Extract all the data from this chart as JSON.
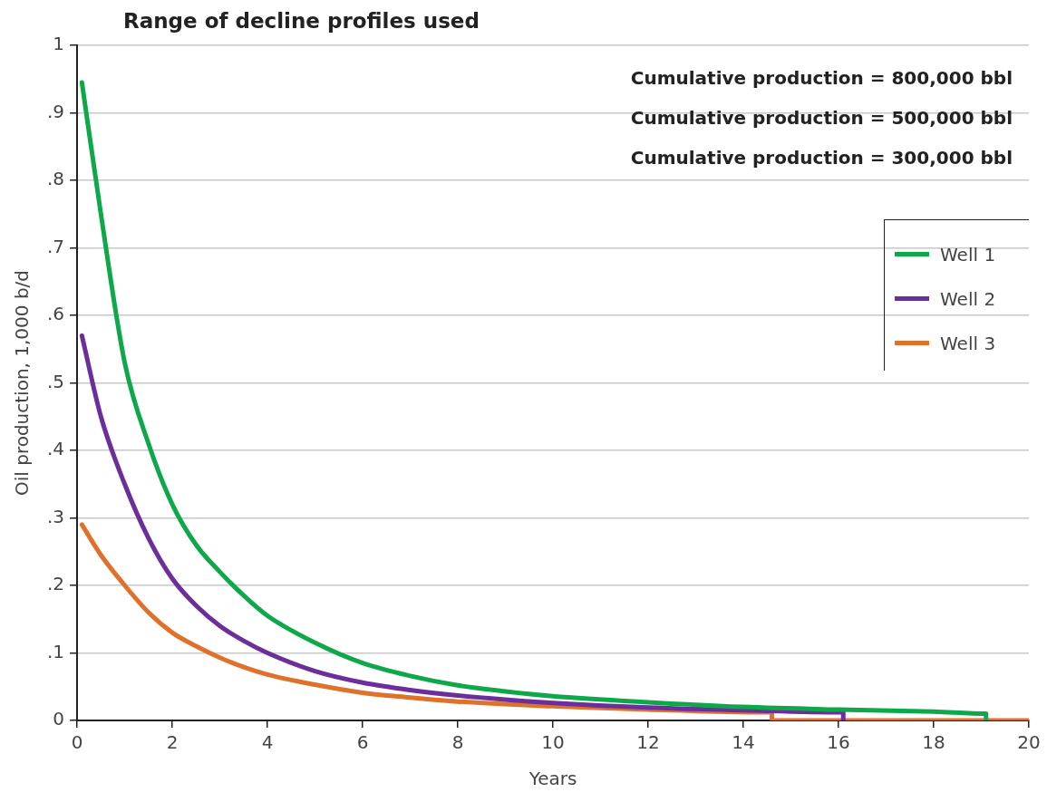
{
  "chart_data": {
    "type": "line",
    "title": "Range of decline profiles used",
    "xlabel": "Years",
    "ylabel": "Oil production, 1,000 b/d",
    "annotations": [
      "Cumulative production = 800,000 bbl",
      "Cumulative production = 500,000 bbl",
      "Cumulative production = 300,000 bbl"
    ],
    "series": [
      {
        "name": "Well 1",
        "color": "#0ea84a",
        "x": [
          0.1,
          0.5,
          1,
          1.5,
          2,
          2.5,
          3,
          3.5,
          4,
          5,
          6,
          7,
          8,
          9,
          10,
          12,
          14,
          16,
          18,
          19.1,
          19.1
        ],
        "values": [
          0.945,
          0.75,
          0.53,
          0.41,
          0.32,
          0.26,
          0.22,
          0.185,
          0.155,
          0.115,
          0.085,
          0.066,
          0.052,
          0.043,
          0.036,
          0.027,
          0.02,
          0.016,
          0.013,
          0.01,
          0
        ]
      },
      {
        "name": "Well 2",
        "color": "#6b2e9a",
        "x": [
          0.1,
          0.5,
          1,
          1.5,
          2,
          2.5,
          3,
          3.5,
          4,
          5,
          6,
          7,
          8,
          9,
          10,
          12,
          14,
          16.1,
          16.1
        ],
        "values": [
          0.57,
          0.45,
          0.35,
          0.27,
          0.21,
          0.17,
          0.14,
          0.118,
          0.1,
          0.073,
          0.056,
          0.045,
          0.037,
          0.031,
          0.026,
          0.019,
          0.015,
          0.012,
          0
        ]
      },
      {
        "name": "Well 3",
        "color": "#e0712b",
        "x": [
          0.1,
          0.5,
          1,
          1.5,
          2,
          2.5,
          3,
          3.5,
          4,
          5,
          6,
          7,
          8,
          9,
          10,
          12,
          14.6,
          14.6,
          20
        ],
        "values": [
          0.29,
          0.245,
          0.2,
          0.16,
          0.13,
          0.11,
          0.093,
          0.079,
          0.068,
          0.053,
          0.041,
          0.034,
          0.028,
          0.024,
          0.021,
          0.016,
          0.012,
          0,
          0
        ]
      }
    ],
    "xlim": [
      0,
      20
    ],
    "xticks": [
      0,
      2,
      4,
      6,
      8,
      10,
      12,
      14,
      16,
      18,
      20
    ],
    "ylim": [
      0,
      1
    ],
    "yticks": [
      0,
      {
        "value": 0.1,
        "label": ".1"
      },
      {
        "value": 0.2,
        "label": ".2"
      },
      {
        "value": 0.3,
        "label": ".3"
      },
      {
        "value": 0.4,
        "label": ".4"
      },
      {
        "value": 0.5,
        "label": ".5"
      },
      {
        "value": 0.6,
        "label": ".6"
      },
      {
        "value": 0.7,
        "label": ".7"
      },
      {
        "value": 0.8,
        "label": ".8"
      },
      {
        "value": 0.9,
        "label": ".9"
      },
      1
    ],
    "grid": "y",
    "legend": "top right",
    "marker": "none",
    "line_style": "solid"
  }
}
